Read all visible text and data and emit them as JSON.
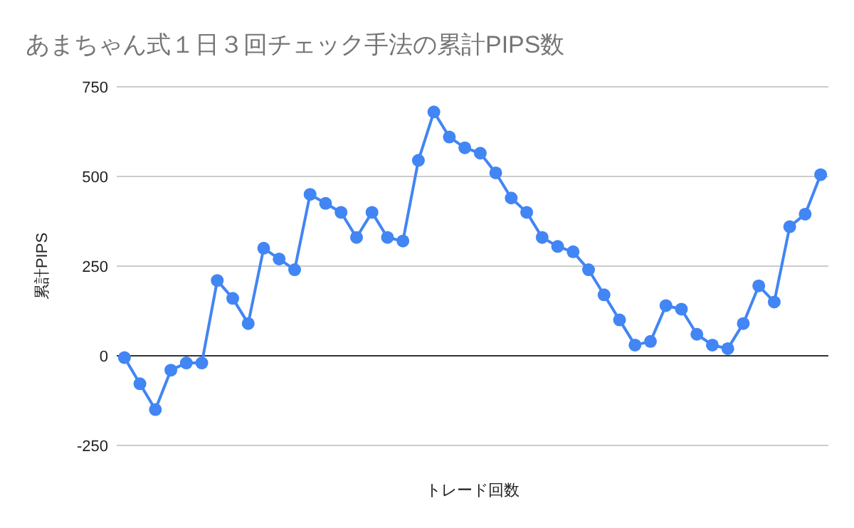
{
  "chart_data": {
    "type": "line",
    "title": "あまちゃん式１日３回チェック手法の累計PIPS数",
    "xlabel": "トレード回数",
    "ylabel": "累計PIPS",
    "categories": [
      null,
      null,
      null,
      null,
      null,
      null,
      null,
      null,
      null,
      null,
      null,
      null,
      null,
      null,
      null,
      null,
      null,
      null,
      null,
      null,
      null,
      null,
      null,
      null,
      null,
      null,
      null,
      null,
      null,
      null,
      null,
      null,
      null,
      null,
      null,
      null,
      null,
      null,
      null,
      null,
      null,
      null,
      null,
      null,
      null,
      null
    ],
    "series": [
      {
        "color": "#4285f4",
        "values": [
          -5,
          -78,
          -150,
          -40,
          -20,
          -20,
          210,
          160,
          90,
          300,
          270,
          240,
          450,
          425,
          400,
          330,
          400,
          330,
          320,
          545,
          680,
          610,
          580,
          565,
          510,
          440,
          400,
          330,
          305,
          290,
          240,
          170,
          100,
          30,
          40,
          140,
          130,
          60,
          30,
          20,
          90,
          195,
          150,
          360,
          395,
          505
        ]
      }
    ],
    "ylim": [
      -250,
      750
    ],
    "yticks": [
      -250,
      0,
      250,
      500,
      750
    ],
    "grid": "y",
    "marker": "circle",
    "line_style": "solid"
  }
}
